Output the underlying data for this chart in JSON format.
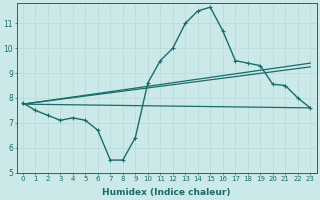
{
  "xlabel": "Humidex (Indice chaleur)",
  "ylabel": "",
  "background_color": "#cce9e9",
  "grid_color": "#b8d8d8",
  "line_color": "#1a6b6b",
  "xlim": [
    -0.5,
    23.5
  ],
  "ylim": [
    5,
    11.8
  ],
  "yticks": [
    5,
    6,
    7,
    8,
    9,
    10,
    11
  ],
  "xticks": [
    0,
    1,
    2,
    3,
    4,
    5,
    6,
    7,
    8,
    9,
    10,
    11,
    12,
    13,
    14,
    15,
    16,
    17,
    18,
    19,
    20,
    21,
    22,
    23
  ],
  "series": [
    {
      "x": [
        0,
        1,
        2,
        3,
        4,
        5,
        6,
        7,
        8,
        9,
        10,
        11,
        12,
        13,
        14,
        15,
        16,
        17,
        18,
        19,
        20,
        21,
        22,
        23
      ],
      "y": [
        7.8,
        7.5,
        7.3,
        7.1,
        7.2,
        7.1,
        6.7,
        5.5,
        5.5,
        6.4,
        8.6,
        9.5,
        10.0,
        11.0,
        11.5,
        11.65,
        10.7,
        9.5,
        9.4,
        9.3,
        8.55,
        8.5,
        8.0,
        7.6
      ],
      "lw": 1.0,
      "marker": "+"
    },
    {
      "x": [
        0,
        23
      ],
      "y": [
        7.75,
        7.6
      ],
      "lw": 0.9,
      "marker": null
    },
    {
      "x": [
        0,
        23
      ],
      "y": [
        7.75,
        9.25
      ],
      "lw": 0.9,
      "marker": null
    },
    {
      "x": [
        0,
        23
      ],
      "y": [
        7.75,
        9.4
      ],
      "lw": 0.9,
      "marker": null
    }
  ]
}
